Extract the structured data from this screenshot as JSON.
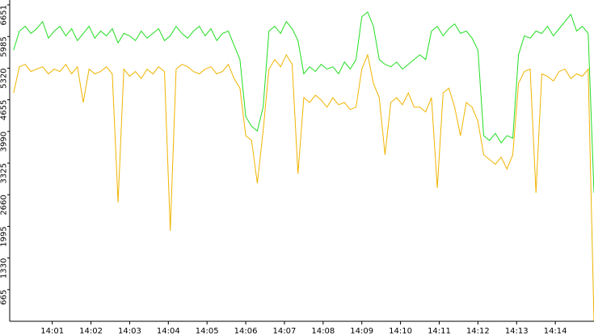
{
  "chart_data": {
    "type": "line",
    "x": [
      0,
      0.15,
      0.3,
      0.45,
      0.6,
      0.75,
      0.9,
      1.05,
      1.2,
      1.35,
      1.5,
      1.65,
      1.8,
      1.95,
      2.1,
      2.25,
      2.4,
      2.55,
      2.7,
      2.85,
      3,
      3.15,
      3.3,
      3.45,
      3.6,
      3.75,
      3.9,
      4.05,
      4.2,
      4.35,
      4.5,
      4.65,
      4.8,
      4.95,
      5.1,
      5.25,
      5.4,
      5.55,
      5.7,
      5.85,
      6,
      6.15,
      6.3,
      6.45,
      6.6,
      6.75,
      6.9,
      7.05,
      7.2,
      7.35,
      7.5,
      7.65,
      7.8,
      7.95,
      8.1,
      8.25,
      8.4,
      8.55,
      8.7,
      8.85,
      9,
      9.15,
      9.3,
      9.45,
      9.6,
      9.75,
      9.9,
      10.05,
      10.2,
      10.35,
      10.5,
      10.65,
      10.8,
      10.95,
      11.1,
      11.25,
      11.4,
      11.55,
      11.7,
      11.85,
      12,
      12.15,
      12.3,
      12.45,
      12.6,
      12.75,
      12.9,
      13.05,
      13.2,
      13.35,
      13.5,
      13.65,
      13.8,
      13.95,
      14.1,
      14.25,
      14.4,
      14.55,
      14.7,
      14.85,
      15
    ],
    "series": [
      {
        "color": "#f0b400",
        "values": [
          4800,
          5350,
          5400,
          5250,
          5300,
          5350,
          5200,
          5300,
          5250,
          5400,
          5200,
          5350,
          4600,
          5300,
          5200,
          5250,
          5350,
          5200,
          2500,
          5300,
          5150,
          5250,
          5100,
          5300,
          5200,
          5350,
          5250,
          1900,
          5300,
          5400,
          5350,
          5250,
          5200,
          5300,
          5350,
          5200,
          5250,
          5400,
          5100,
          4900,
          3900,
          3800,
          2900,
          4000,
          5300,
          5500,
          5350,
          5600,
          5400,
          3100,
          4700,
          4600,
          4750,
          4650,
          4500,
          4700,
          4550,
          4600,
          4450,
          4500,
          5300,
          5600,
          5000,
          4700,
          3500,
          4600,
          4700,
          4550,
          4800,
          4500,
          4500,
          4400,
          4700,
          2800,
          4800,
          4900,
          4500,
          3900,
          4600,
          4500,
          4200,
          3500,
          3400,
          3300,
          3450,
          3200,
          3500,
          5000,
          5250,
          5300,
          2700,
          5200,
          5150,
          5050,
          5250,
          5300,
          5100,
          5200,
          5150,
          5300,
          0
        ]
      },
      {
        "color": "#22dd22",
        "values": [
          5700,
          6100,
          6200,
          6050,
          6150,
          6300,
          5950,
          6100,
          6200,
          6000,
          6150,
          5900,
          6050,
          6200,
          5950,
          6100,
          6000,
          6150,
          5850,
          6050,
          6000,
          5900,
          6100,
          5950,
          6050,
          6150,
          5900,
          6000,
          6200,
          6050,
          5950,
          6100,
          6200,
          6000,
          6150,
          5900,
          6050,
          6100,
          5800,
          5500,
          4300,
          4100,
          4000,
          4500,
          6100,
          6200,
          6050,
          6300,
          6150,
          5900,
          5200,
          5350,
          5250,
          5400,
          5300,
          5350,
          5200,
          5450,
          5300,
          5500,
          6400,
          6500,
          6200,
          5500,
          5400,
          5350,
          5450,
          5300,
          5400,
          5500,
          5600,
          5500,
          6100,
          6200,
          6000,
          6150,
          6250,
          6050,
          6100,
          5950,
          5700,
          3900,
          3800,
          3950,
          3750,
          3900,
          3850,
          5600,
          6000,
          5950,
          6100,
          6050,
          6200,
          6000,
          6150,
          6300,
          6450,
          6100,
          6200,
          6050,
          2700
        ]
      }
    ],
    "xlim": [
      -0.1,
      15.0
    ],
    "xticks": [
      {
        "value": 1,
        "label": "14:01"
      },
      {
        "value": 2,
        "label": "14:02"
      },
      {
        "value": 3,
        "label": "14:03"
      },
      {
        "value": 4,
        "label": "14:04"
      },
      {
        "value": 5,
        "label": "14:05"
      },
      {
        "value": 6,
        "label": "14:06"
      },
      {
        "value": 7,
        "label": "14:07"
      },
      {
        "value": 8,
        "label": "14:08"
      },
      {
        "value": 9,
        "label": "14:09"
      },
      {
        "value": 10,
        "label": "14:10"
      },
      {
        "value": 11,
        "label": "14:11"
      },
      {
        "value": 12,
        "label": "14:12"
      },
      {
        "value": 13,
        "label": "14:13"
      },
      {
        "value": 14,
        "label": "14:14"
      }
    ],
    "ylim": [
      0,
      6651
    ],
    "yticks": [
      665,
      1330,
      1995,
      2660,
      3325,
      3990,
      4655,
      5320,
      5985,
      6651
    ]
  }
}
